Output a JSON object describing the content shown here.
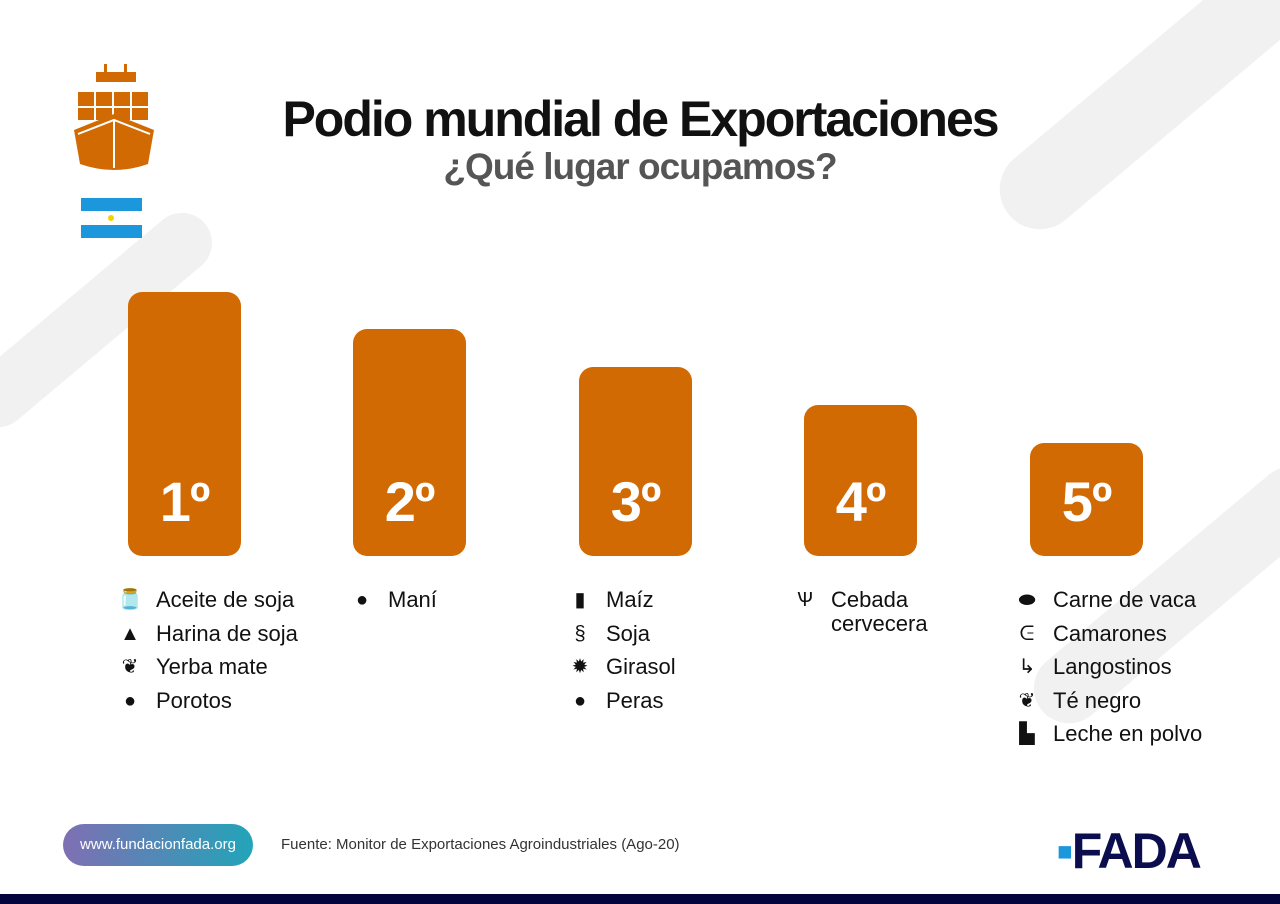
{
  "header": {
    "title": "Podio mundial de Exportaciones",
    "subtitle": "¿Qué lugar ocupamos?",
    "icons": [
      "cargo-ship-icon",
      "argentina-flag"
    ]
  },
  "colors": {
    "bar": "#d26a04",
    "ship": "#d26a04",
    "footer": "#03033d",
    "logo": "#0b0d4f"
  },
  "podium": [
    {
      "rank": "1º",
      "items": [
        {
          "icon": "oil-bottle-icon",
          "glyph": "🫙",
          "label": "Aceite de soja"
        },
        {
          "icon": "flour-sack-icon",
          "glyph": "▲",
          "label": "Harina de soja"
        },
        {
          "icon": "leaf-icon",
          "glyph": "❦",
          "label": "Yerba mate"
        },
        {
          "icon": "beans-icon",
          "glyph": "●",
          "label": "Porotos"
        }
      ]
    },
    {
      "rank": "2º",
      "items": [
        {
          "icon": "peanut-icon",
          "glyph": "●",
          "label": "Maní"
        }
      ]
    },
    {
      "rank": "3º",
      "items": [
        {
          "icon": "corn-icon",
          "glyph": "▮",
          "label": "Maíz"
        },
        {
          "icon": "soy-icon",
          "glyph": "§",
          "label": "Soja"
        },
        {
          "icon": "sunflower-icon",
          "glyph": "✹",
          "label": "Girasol"
        },
        {
          "icon": "pear-icon",
          "glyph": "●",
          "label": "Peras"
        }
      ]
    },
    {
      "rank": "4º",
      "items": [
        {
          "icon": "barley-icon",
          "glyph": "Ѱ",
          "label": "Cebada cervecera"
        }
      ]
    },
    {
      "rank": "5º",
      "items": [
        {
          "icon": "steak-icon",
          "glyph": "⬬",
          "label": "Carne de vaca"
        },
        {
          "icon": "shrimp-icon",
          "glyph": "ᕮ",
          "label": "Camarones"
        },
        {
          "icon": "prawn-icon",
          "glyph": "↳",
          "label": "Langostinos"
        },
        {
          "icon": "tea-leaf-icon",
          "glyph": "❦",
          "label": "Té negro"
        },
        {
          "icon": "milk-powder-icon",
          "glyph": "▙",
          "label": "Leche en polvo"
        }
      ]
    }
  ],
  "footer": {
    "url": "www.fundacionfada.org",
    "source": "Fuente: Monitor de Exportaciones Agroindustriales (Ago-20)",
    "logo": "FADA"
  }
}
